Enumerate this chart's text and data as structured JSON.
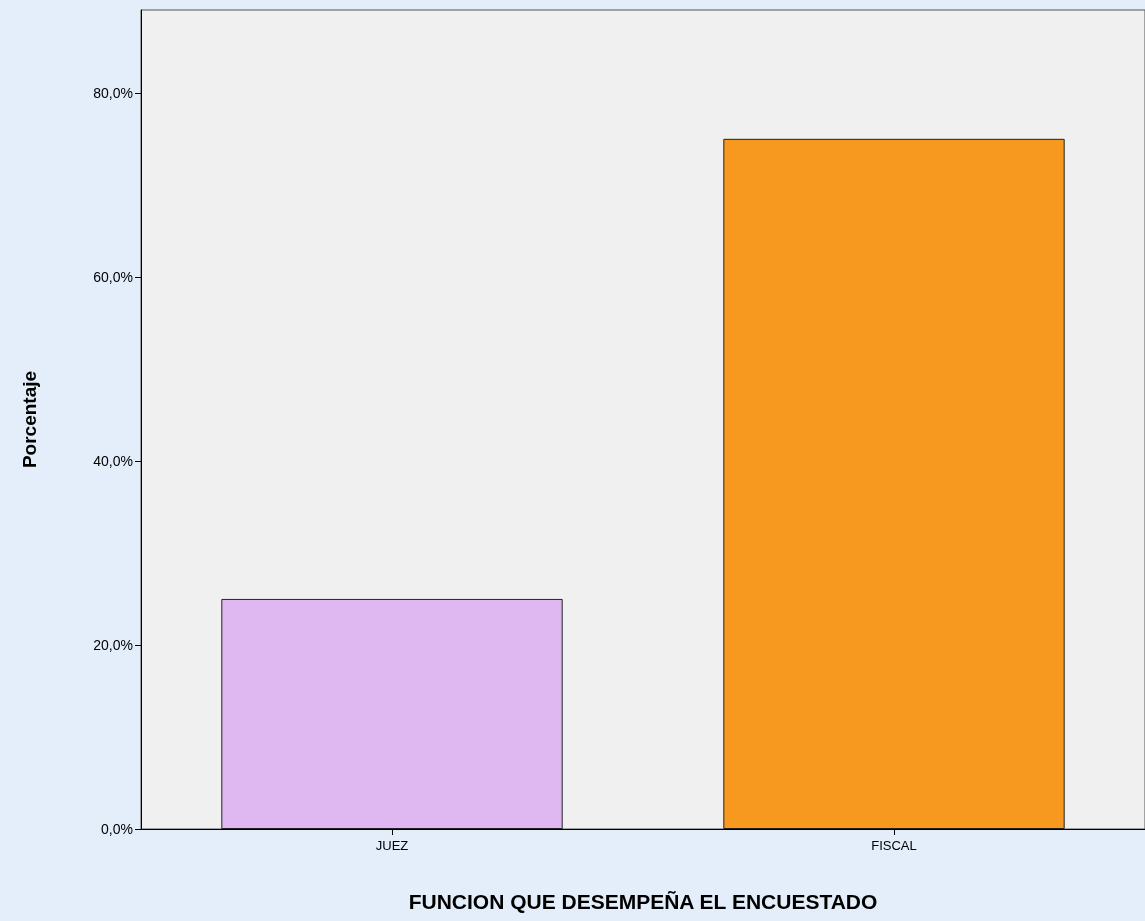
{
  "chart_data": {
    "type": "bar",
    "xlabel": "FUNCION QUE DESEMPEÑA EL ENCUESTADO",
    "ylabel": "Porcentaje",
    "categories": [
      "JUEZ",
      "FISCAL"
    ],
    "values": [
      25,
      75
    ],
    "colors": [
      "#dfb8f2",
      "#f7991f"
    ],
    "ylim": [
      0,
      89
    ],
    "yticks": [
      {
        "value": 0,
        "label": "0,0%"
      },
      {
        "value": 20,
        "label": "20,0%"
      },
      {
        "value": 40,
        "label": "40,0%"
      },
      {
        "value": 60,
        "label": "60,0%"
      },
      {
        "value": 80,
        "label": "80,0%"
      }
    ]
  }
}
